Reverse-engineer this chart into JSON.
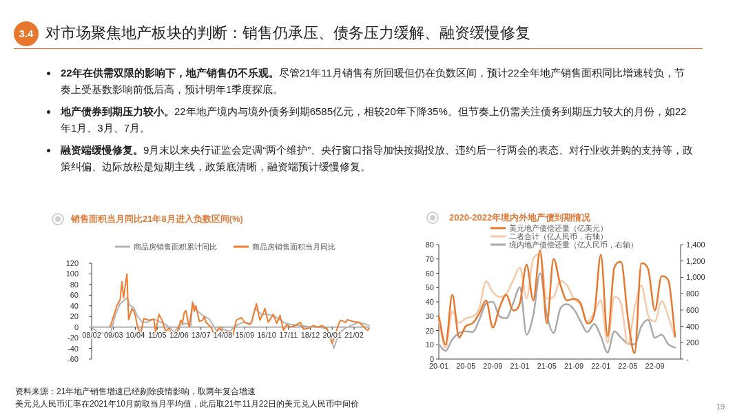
{
  "chart_data": [
    {
      "type": "other",
      "title": "对市场聚焦地产板块的判断：销售仍承压、债务压力缓解、融资缓慢修复",
      "annotations": [
        "3.4",
        "22年在供需双限的影响下，地产销售仍不乐观。尽管21年11月销售有所回暖但仍在负数区间，预计22全年地产销售面积同比增速转负，节奏上受基数影响前低后高，预计明年1季度探底。",
        "地产债券到期压力较小。22年地产境内与境外债务到期6585亿元，相较20年下降35%。但节奏上仍需关注债务到期压力较大的月份，如22年1月、3月、7月。",
        "融资端缓慢修复。9月末以来央行证监会定调“两个维护”、央行窗口指导加快按揭投放、违约后一行两会的表态、对行业收并购的支持等，政策纠偏、边际放松是短期主线，政策底清晰，融资端预计缓慢修复。",
        "资料来源：21年地产销售增速已经剔除疫情影响，取两年复合增速",
        "美元兑人民币汇率在2021年10月前取当月平均值，此后取21年11月22日的美元兑人民币中间价",
        "19"
      ]
    },
    {
      "type": "line",
      "title": "销售面积当月同比21年8月进入负数区间(%)",
      "legend": "top",
      "xlim": [
        "2008-02",
        "2021-11"
      ],
      "ylim": [
        -60,
        120
      ],
      "yticks": [
        -60,
        -40,
        -20,
        0,
        20,
        40,
        60,
        80,
        100,
        120
      ],
      "xticks": [
        {
          "value": "2008-02",
          "label": "08/02"
        },
        {
          "value": "2009-03",
          "label": "09/03"
        },
        {
          "value": "2010-04",
          "label": "10/04"
        },
        {
          "value": "2011-05",
          "label": "11/05"
        },
        {
          "value": "2012-06",
          "label": "12/06"
        },
        {
          "value": "2013-07",
          "label": "13/07"
        },
        {
          "value": "2014-08",
          "label": "14/08"
        },
        {
          "value": "2015-09",
          "label": "15/09"
        },
        {
          "value": "2016-10",
          "label": "16/10"
        },
        {
          "value": "2017-11",
          "label": "17/11"
        },
        {
          "value": "2018-12",
          "label": "18/12"
        },
        {
          "value": "2020-01",
          "label": "20/01"
        },
        {
          "value": "2021-02",
          "label": "21/02"
        }
      ],
      "series": [
        {
          "name": "商品房销售面积累计同比",
          "color": "#b4b4b4",
          "x": [
            "2008-02",
            "2008-05",
            "2008-07",
            "2009-01",
            "2009-04",
            "2009-07",
            "2009-11",
            "2010-01",
            "2010-03",
            "2010-05",
            "2010-08",
            "2010-11",
            "2011-03",
            "2011-06",
            "2011-10",
            "2012-01",
            "2012-03",
            "2012-06",
            "2012-10",
            "2013-01",
            "2013-02",
            "2013-04",
            "2013-08",
            "2013-12",
            "2014-04",
            "2014-08",
            "2014-12",
            "2015-04",
            "2015-08",
            "2016-01",
            "2016-03",
            "2016-07",
            "2016-11",
            "2017-04",
            "2017-08",
            "2017-12",
            "2018-05",
            "2018-11",
            "2019-04",
            "2019-10",
            "2020-02",
            "2020-05",
            "2020-09",
            "2020-12",
            "2021-05",
            "2021-09",
            "2021-11"
          ],
          "values": [
            0,
            -8,
            -10,
            -15,
            22,
            44,
            55,
            40,
            37,
            22,
            9,
            9,
            15,
            11,
            5,
            -2,
            -10,
            3,
            7,
            3,
            48,
            33,
            22,
            15,
            -6,
            -4,
            -8,
            3,
            9,
            7,
            35,
            24,
            24,
            18,
            9,
            5,
            3,
            1,
            0,
            -2,
            -40,
            -10,
            -2,
            3,
            9,
            5,
            3
          ]
        },
        {
          "name": "商品房销售面积当月同比",
          "color": "#ef7d31",
          "x": [
            "2009-01",
            "2009-05",
            "2009-07",
            "2009-08",
            "2009-09",
            "2009-11",
            "2009-12",
            "2010-02",
            "2010-03",
            "2010-04",
            "2010-05",
            "2010-07",
            "2010-09",
            "2010-12",
            "2011-03",
            "2011-04",
            "2011-06",
            "2011-08",
            "2011-10",
            "2011-12",
            "2012-02",
            "2012-05",
            "2012-07",
            "2012-08",
            "2012-09",
            "2012-10",
            "2012-12",
            "2013-02",
            "2013-03",
            "2013-04",
            "2013-06",
            "2013-08",
            "2013-09",
            "2013-10",
            "2014-01",
            "2014-03",
            "2014-06",
            "2014-08",
            "2014-11",
            "2015-02",
            "2015-04",
            "2015-07",
            "2015-09",
            "2015-12",
            "2016-01",
            "2016-04",
            "2016-06",
            "2016-08",
            "2016-09",
            "2016-11",
            "2017-02",
            "2017-04",
            "2017-06",
            "2017-08",
            "2017-10",
            "2017-12",
            "2018-03",
            "2018-05",
            "2018-06",
            "2018-08",
            "2018-11",
            "2019-02",
            "2019-04",
            "2019-07",
            "2019-10",
            "2020-01",
            "2020-05",
            "2020-06",
            "2020-09",
            "2020-10",
            "2021-01",
            "2021-05",
            "2021-08",
            "2021-09",
            "2021-10",
            "2021-11"
          ],
          "values": [
            0,
            40,
            52,
            85,
            55,
            100,
            14,
            35,
            30,
            22,
            5,
            -15,
            16,
            13,
            15,
            -10,
            24,
            12,
            -8,
            -2,
            -17,
            -8,
            13,
            7,
            27,
            31,
            0,
            45,
            30,
            40,
            11,
            13,
            20,
            9,
            0,
            -15,
            0,
            -10,
            -8,
            -15,
            13,
            18,
            9,
            5,
            9,
            44,
            13,
            26,
            35,
            9,
            24,
            7,
            22,
            -6,
            5,
            0,
            3,
            7,
            9,
            -4,
            -2,
            3,
            0,
            3,
            -4,
            -30,
            7,
            13,
            9,
            14,
            11,
            9,
            0,
            -4,
            -6,
            -2
          ]
        }
      ]
    },
    {
      "type": "line",
      "title": "2020-2022年境内外地产债到期情况",
      "legend": "top",
      "categories": [
        "20-01",
        null,
        null,
        null,
        "20-05",
        null,
        null,
        null,
        "20-09",
        null,
        null,
        null,
        "21-01",
        null,
        null,
        null,
        "21-05",
        null,
        null,
        null,
        "21-09",
        null,
        null,
        null,
        "22-01",
        null,
        null,
        null,
        "22-05",
        null,
        null,
        null,
        "22-09",
        null,
        null,
        null
      ],
      "ylim": [
        0,
        80
      ],
      "yticks": [
        0,
        10,
        20,
        30,
        40,
        50,
        60,
        70,
        80
      ],
      "y2lim": [
        0,
        1400
      ],
      "y2ticks": [
        {
          "value": 0,
          "label": "-"
        },
        200,
        400,
        600,
        800,
        {
          "value": 1000,
          "label": "1,000"
        },
        {
          "value": 1200,
          "label": "1,200"
        },
        {
          "value": 1400,
          "label": "1,400"
        }
      ],
      "series": [
        {
          "name": "境内地产债偿还量（亿人民币，右轴）",
          "color": "#a9a9a9",
          "axis": "y2",
          "values": [
            180,
            100,
            240,
            320,
            340,
            330,
            480,
            680,
            700,
            520,
            500,
            680,
            880,
            300,
            540,
            1050,
            540,
            320,
            620,
            670,
            610,
            460,
            330,
            430,
            280,
            80,
            340,
            260,
            190,
            180,
            400,
            480,
            260,
            300,
            180,
            140
          ]
        },
        {
          "name": "二者合计（亿人民币，右轴）",
          "color": "#f6c9a8",
          "axis": "y2",
          "values": [
            460,
            140,
            580,
            440,
            500,
            520,
            620,
            950,
            820,
            760,
            800,
            960,
            1120,
            740,
            1230,
            1280,
            740,
            760,
            960,
            900,
            740,
            660,
            460,
            570,
            720,
            200,
            760,
            680,
            180,
            620,
            900,
            540,
            460,
            710,
            520,
            260
          ]
        },
        {
          "name": "美元地产债偿还量（亿美元）",
          "color": "#e8772e",
          "values": [
            30,
            10,
            45,
            15,
            23,
            25,
            32,
            41,
            22,
            36,
            45,
            34,
            39,
            66,
            41,
            76,
            25,
            70,
            52,
            41,
            42,
            39,
            25,
            31,
            73,
            16,
            64,
            68,
            29,
            4,
            67,
            63,
            34,
            58,
            55,
            16
          ]
        }
      ]
    }
  ]
}
